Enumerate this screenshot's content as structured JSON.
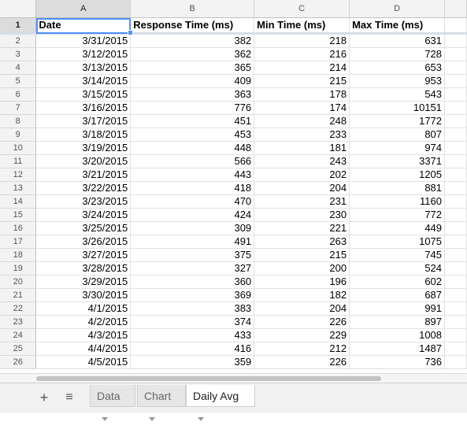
{
  "columns": [
    "A",
    "B",
    "C",
    "D"
  ],
  "header_row": {
    "row_num": "1",
    "cells": [
      "Date",
      "Response Time (ms)",
      "Min Time (ms)",
      "Max Time (ms)"
    ]
  },
  "rows": [
    {
      "n": "2",
      "date": "3/31/2015",
      "resp": "382",
      "min": "218",
      "max": "631"
    },
    {
      "n": "3",
      "date": "3/12/2015",
      "resp": "362",
      "min": "216",
      "max": "728"
    },
    {
      "n": "4",
      "date": "3/13/2015",
      "resp": "365",
      "min": "214",
      "max": "653"
    },
    {
      "n": "5",
      "date": "3/14/2015",
      "resp": "409",
      "min": "215",
      "max": "953"
    },
    {
      "n": "6",
      "date": "3/15/2015",
      "resp": "363",
      "min": "178",
      "max": "543"
    },
    {
      "n": "7",
      "date": "3/16/2015",
      "resp": "776",
      "min": "174",
      "max": "10151"
    },
    {
      "n": "8",
      "date": "3/17/2015",
      "resp": "451",
      "min": "248",
      "max": "1772"
    },
    {
      "n": "9",
      "date": "3/18/2015",
      "resp": "453",
      "min": "233",
      "max": "807"
    },
    {
      "n": "10",
      "date": "3/19/2015",
      "resp": "448",
      "min": "181",
      "max": "974"
    },
    {
      "n": "11",
      "date": "3/20/2015",
      "resp": "566",
      "min": "243",
      "max": "3371"
    },
    {
      "n": "12",
      "date": "3/21/2015",
      "resp": "443",
      "min": "202",
      "max": "1205"
    },
    {
      "n": "13",
      "date": "3/22/2015",
      "resp": "418",
      "min": "204",
      "max": "881"
    },
    {
      "n": "14",
      "date": "3/23/2015",
      "resp": "470",
      "min": "231",
      "max": "1160"
    },
    {
      "n": "15",
      "date": "3/24/2015",
      "resp": "424",
      "min": "230",
      "max": "772"
    },
    {
      "n": "16",
      "date": "3/25/2015",
      "resp": "309",
      "min": "221",
      "max": "449"
    },
    {
      "n": "17",
      "date": "3/26/2015",
      "resp": "491",
      "min": "263",
      "max": "1075"
    },
    {
      "n": "18",
      "date": "3/27/2015",
      "resp": "375",
      "min": "215",
      "max": "745"
    },
    {
      "n": "19",
      "date": "3/28/2015",
      "resp": "327",
      "min": "200",
      "max": "524"
    },
    {
      "n": "20",
      "date": "3/29/2015",
      "resp": "360",
      "min": "196",
      "max": "602"
    },
    {
      "n": "21",
      "date": "3/30/2015",
      "resp": "369",
      "min": "182",
      "max": "687"
    },
    {
      "n": "22",
      "date": "4/1/2015",
      "resp": "383",
      "min": "204",
      "max": "991"
    },
    {
      "n": "23",
      "date": "4/2/2015",
      "resp": "374",
      "min": "226",
      "max": "897"
    },
    {
      "n": "24",
      "date": "4/3/2015",
      "resp": "433",
      "min": "229",
      "max": "1008"
    },
    {
      "n": "25",
      "date": "4/4/2015",
      "resp": "416",
      "min": "212",
      "max": "1487"
    },
    {
      "n": "26",
      "date": "4/5/2015",
      "resp": "359",
      "min": "226",
      "max": "736"
    }
  ],
  "toolbar": {
    "add_icon": "+",
    "menu_icon": "≡"
  },
  "tabs": [
    {
      "label": "Data",
      "active": false
    },
    {
      "label": "Chart",
      "active": false
    },
    {
      "label": "Daily Avg",
      "active": true
    }
  ]
}
